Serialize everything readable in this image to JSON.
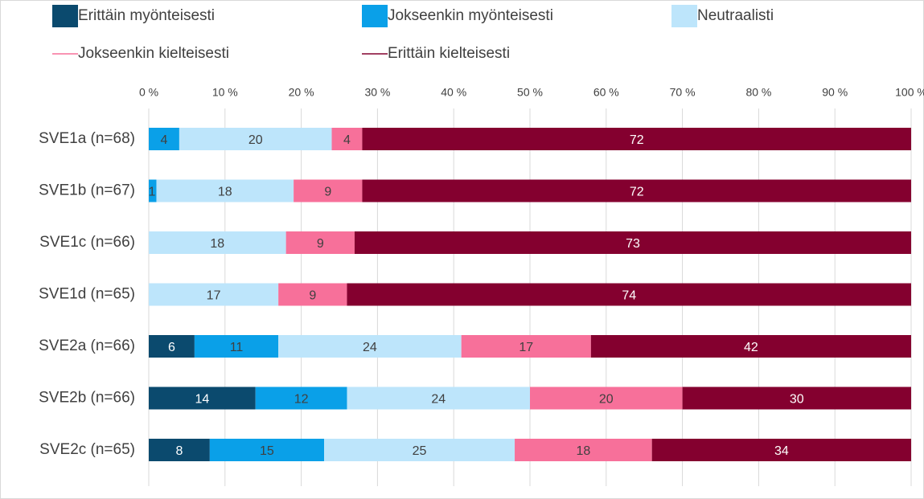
{
  "chart_data": {
    "type": "stacked-bar-horizontal",
    "categories": [
      "SVE1a (n=68)",
      "SVE1b (n=67)",
      "SVE1c (n=66)",
      "SVE1d (n=65)",
      "SVE2a (n=66)",
      "SVE2b (n=66)",
      "SVE2c (n=65)"
    ],
    "series": [
      {
        "name": "Erittäin myönteisesti",
        "color": "#0b4a6e",
        "values": [
          null,
          null,
          null,
          null,
          6,
          14,
          8
        ]
      },
      {
        "name": "Jokseenkin myönteisesti",
        "color": "#0aa0e8",
        "values": [
          4,
          1,
          null,
          null,
          11,
          12,
          15
        ]
      },
      {
        "name": "Neutraalisti",
        "color": "#bde5fb",
        "values": [
          20,
          18,
          18,
          17,
          24,
          24,
          25
        ]
      },
      {
        "name": "Jokseenkin kielteisesti",
        "color": "#f7709a",
        "values": [
          4,
          9,
          9,
          9,
          17,
          20,
          18
        ]
      },
      {
        "name": "Erittäin kielteisesti",
        "color": "#84002f",
        "values": [
          72,
          72,
          73,
          74,
          42,
          30,
          34
        ]
      }
    ],
    "xlim": [
      0,
      100
    ],
    "xticks": [
      {
        "value": 0,
        "label": "0 %"
      },
      {
        "value": 10,
        "label": "10 %"
      },
      {
        "value": 20,
        "label": "20 %"
      },
      {
        "value": 30,
        "label": "30 %"
      },
      {
        "value": 40,
        "label": "40 %"
      },
      {
        "value": 50,
        "label": "50 %"
      },
      {
        "value": 60,
        "label": "60 %"
      },
      {
        "value": 70,
        "label": "70 %"
      },
      {
        "value": 80,
        "label": "80 %"
      },
      {
        "value": 90,
        "label": "90 %"
      },
      {
        "value": 100,
        "label": "100 %"
      }
    ],
    "grid": true
  }
}
